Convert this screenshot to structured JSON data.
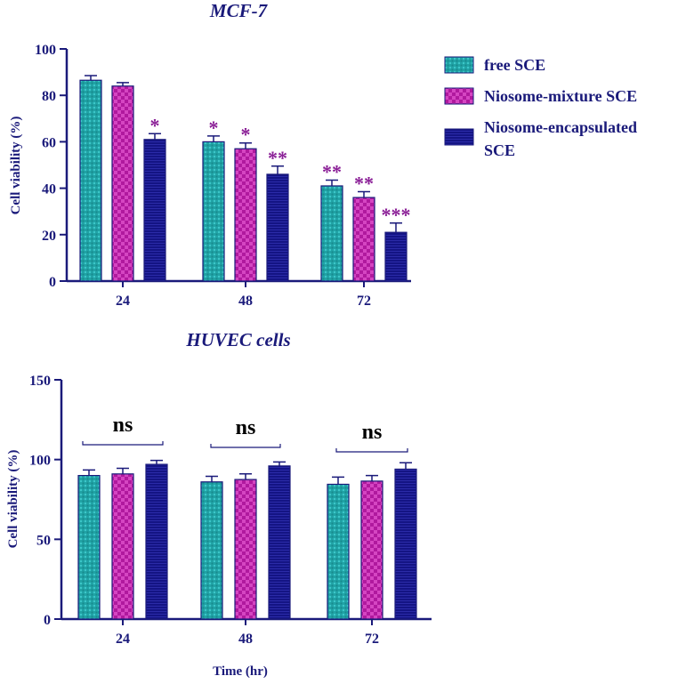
{
  "colors": {
    "axis": "#1a1a7a",
    "free_sce": "#21a3a6",
    "niosome_mixture_sce": "#b0199e",
    "niosome_encapsulated_sce": "#141484",
    "annotation": "#8a1e96"
  },
  "legend": {
    "items": [
      {
        "label_lines": [
          "free SCE"
        ]
      },
      {
        "label_lines": [
          "Niosome-mixture SCE"
        ]
      },
      {
        "label_lines": [
          "Niosome-encapsulated",
          "SCE"
        ]
      }
    ]
  },
  "chart_data": [
    {
      "type": "bar",
      "title": "MCF-7",
      "xlabel": "",
      "ylabel": "Cell viability  (%)",
      "ylim": [
        0,
        100
      ],
      "yticks": [
        "0",
        "20",
        "40",
        "60",
        "80",
        "100"
      ],
      "categories": [
        "24",
        "48",
        "72"
      ],
      "series": [
        {
          "name": "free SCE",
          "values": [
            86.5,
            60,
            41
          ],
          "errors": [
            2,
            2.5,
            2.5
          ],
          "stars": [
            "",
            "*",
            "**"
          ]
        },
        {
          "name": "Niosome-mixture SCE",
          "values": [
            84,
            57,
            36
          ],
          "errors": [
            1.5,
            2.5,
            2.5
          ],
          "stars": [
            "",
            "*",
            "**"
          ]
        },
        {
          "name": "Niosome-encapsulated SCE",
          "values": [
            61,
            46,
            21
          ],
          "errors": [
            2.5,
            3.5,
            4
          ],
          "stars": [
            "*",
            "**",
            "***"
          ]
        }
      ],
      "grid": false,
      "legend_position": "right"
    },
    {
      "type": "bar",
      "title": "HUVEC cells",
      "xlabel": "Time (hr)",
      "ylabel": "Cell viability  (%)",
      "ylim": [
        0,
        150
      ],
      "yticks": [
        "0",
        "50",
        "100",
        "150"
      ],
      "categories": [
        "24",
        "48",
        "72"
      ],
      "series": [
        {
          "name": "free SCE",
          "values": [
            90,
            86,
            84.5
          ],
          "errors": [
            3.5,
            3.5,
            4.5
          ]
        },
        {
          "name": "Niosome-mixture SCE",
          "values": [
            91,
            87.5,
            86.5
          ],
          "errors": [
            3.5,
            3.5,
            3.5
          ]
        },
        {
          "name": "Niosome-encapsulated SCE",
          "values": [
            97,
            96,
            94
          ],
          "errors": [
            2.5,
            2.5,
            4
          ]
        }
      ],
      "group_annotations": [
        "ns",
        "ns",
        "ns"
      ],
      "grid": false
    }
  ]
}
